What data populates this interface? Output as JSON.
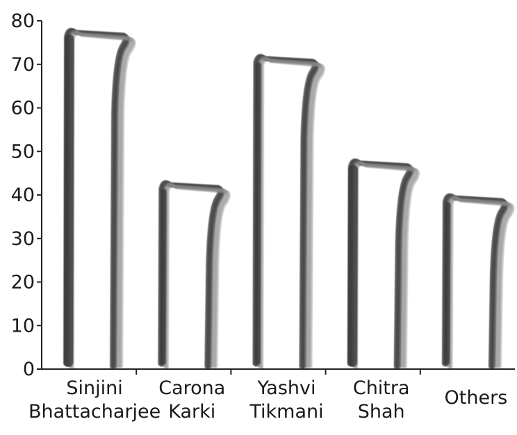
{
  "chart_data": {
    "type": "bar",
    "style": "hand-drawn brush strokes",
    "categories": [
      [
        "Sinjini",
        "Bhattacharjee"
      ],
      [
        "Carona",
        "Karki"
      ],
      [
        "Yashvi",
        "Tikmani"
      ],
      [
        "Chitra",
        "Shah"
      ],
      [
        "Others"
      ]
    ],
    "values": [
      78,
      43,
      72,
      48,
      40
    ],
    "ylim": [
      0,
      80
    ],
    "yticks": [
      "0",
      "10",
      "20",
      "30",
      "40",
      "50",
      "60",
      "70",
      "80"
    ],
    "title": "",
    "xlabel": "",
    "ylabel": "",
    "grid": false,
    "legend": "none",
    "colors": {
      "stroke": "#4a4a4a",
      "stroke_light": "#8a8a8a",
      "axis": "#222222",
      "text": "#1a1a1a"
    }
  }
}
